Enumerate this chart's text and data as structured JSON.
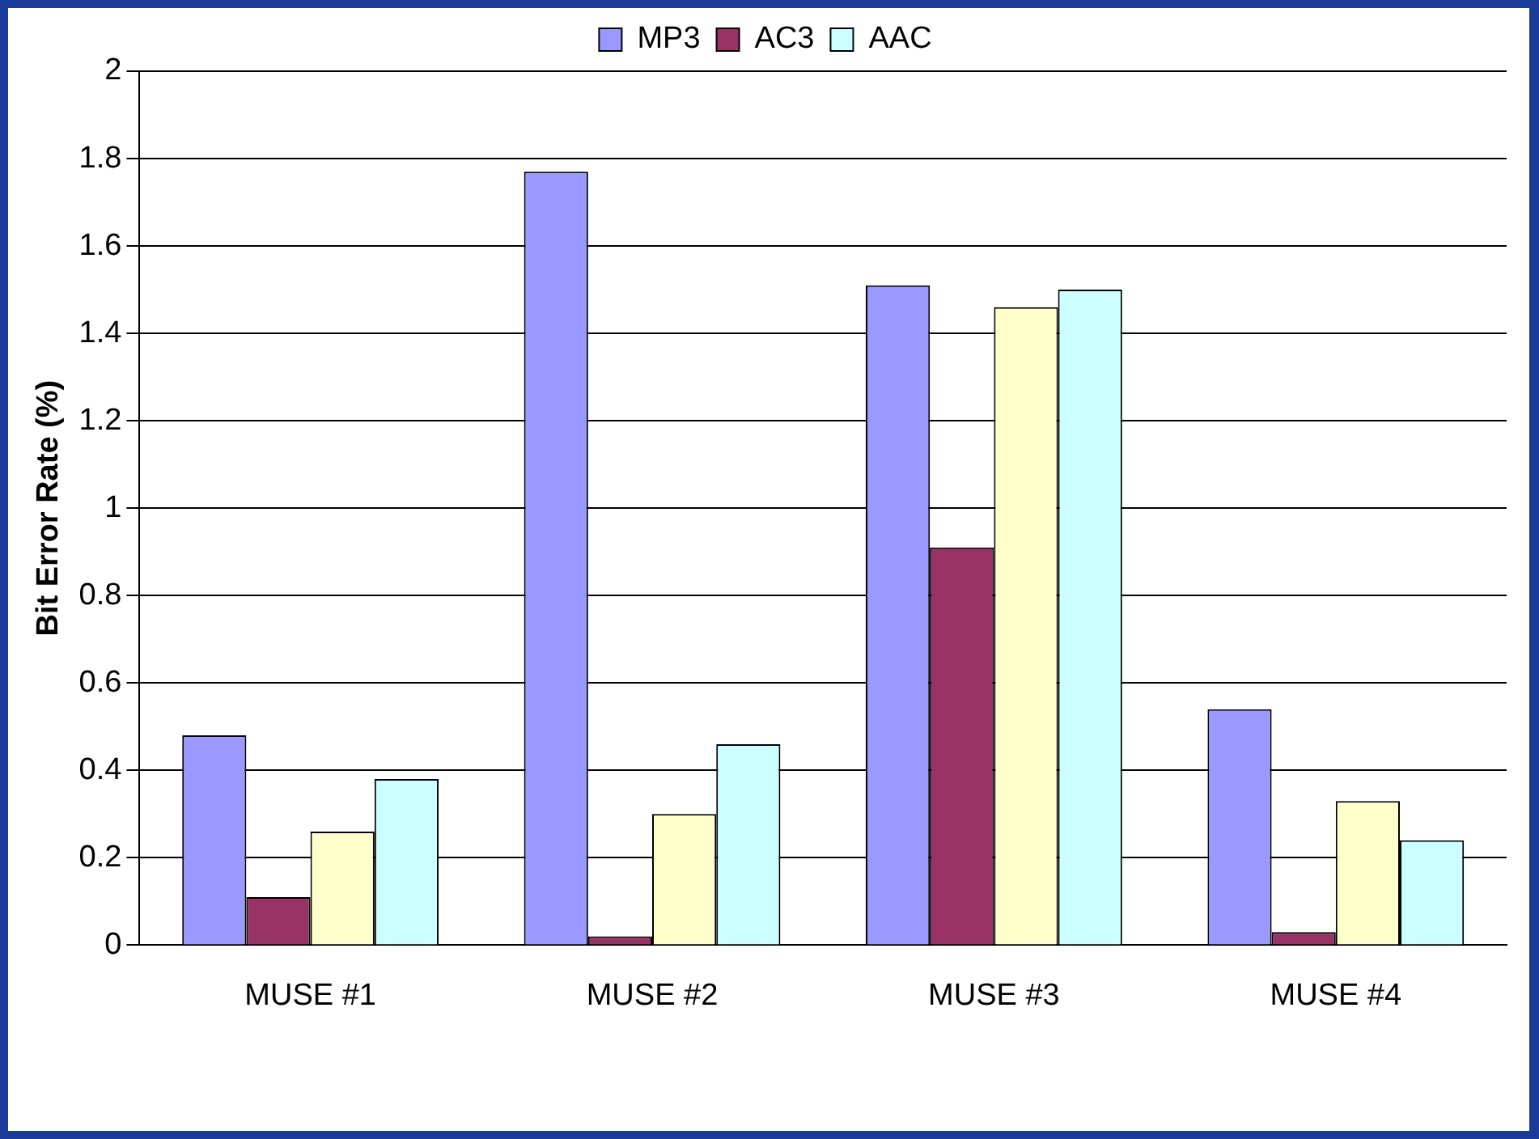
{
  "chart_data": {
    "type": "bar",
    "ylabel": "Bit Error Rate (%)",
    "categories": [
      "MUSE #1",
      "MUSE #2",
      "MUSE #3",
      "MUSE #4"
    ],
    "series": [
      {
        "name": "MP3",
        "color": "#9999ff",
        "values": [
          0.48,
          1.77,
          1.51,
          0.54
        ]
      },
      {
        "name": "AC3",
        "color": "#993366",
        "values": [
          0.11,
          0.02,
          0.91,
          0.03
        ]
      },
      {
        "color": "#ffffcc",
        "values": [
          0.26,
          0.3,
          1.46,
          0.33
        ]
      },
      {
        "name": "AAC",
        "color": "#ccffff",
        "values": [
          0.38,
          0.46,
          1.5,
          0.24
        ]
      }
    ],
    "ylim": [
      0,
      2
    ],
    "yticks": [
      0,
      0.2,
      0.4,
      0.6,
      0.8,
      1,
      1.2,
      1.4,
      1.6,
      1.8,
      2
    ],
    "grid": "y",
    "legend": "top"
  }
}
